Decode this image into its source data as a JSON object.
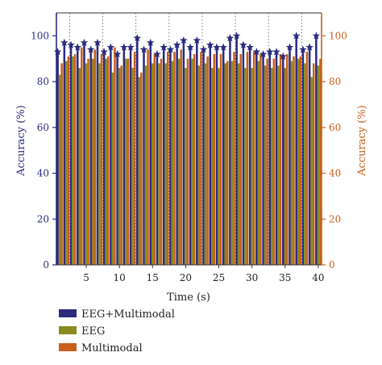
{
  "chart_data": {
    "type": "bar",
    "x": [
      1,
      2,
      3,
      4,
      5,
      6,
      7,
      8,
      9,
      10,
      11,
      12,
      13,
      14,
      15,
      16,
      17,
      18,
      19,
      20,
      21,
      22,
      23,
      24,
      25,
      26,
      27,
      28,
      29,
      30,
      31,
      32,
      33,
      34,
      35,
      36,
      37,
      38,
      39,
      40
    ],
    "xlabel": "Time (s)",
    "ylabel": "Accuracy (%)",
    "y2label": "Accuracy (%)",
    "xlim": [
      0.5,
      40.5
    ],
    "ylim": [
      0,
      110
    ],
    "xticks": [
      5,
      10,
      15,
      20,
      25,
      30,
      35,
      40
    ],
    "yticks": [
      0,
      20,
      40,
      60,
      80,
      100
    ],
    "dotted_vlines": [
      2.5,
      7.5,
      12.5,
      17.5,
      22.5,
      27.5,
      32.5,
      37.5
    ],
    "legend_position": "bottom-left",
    "series": [
      {
        "name": "EEG+Multimodal",
        "color": "#2b2b7e",
        "marker": "star",
        "values": [
          93,
          97,
          96,
          95,
          97,
          94,
          97,
          93,
          95,
          92,
          95,
          95,
          99,
          94,
          97,
          92,
          95,
          94,
          96,
          98,
          95,
          98,
          94,
          96,
          95,
          95,
          99,
          100,
          96,
          95,
          93,
          92,
          93,
          93,
          91,
          95,
          100,
          94,
          95,
          100
        ]
      },
      {
        "name": "EEG",
        "color": "#8a8a1f",
        "values": [
          83,
          89,
          91,
          86,
          88,
          90,
          88,
          90,
          84,
          86,
          90,
          86,
          82,
          87,
          88,
          88,
          88,
          89,
          90,
          86,
          90,
          87,
          88,
          86,
          86,
          88,
          89,
          88,
          86,
          86,
          89,
          87,
          86,
          87,
          86,
          89,
          90,
          88,
          82,
          87
        ]
      },
      {
        "name": "Multimodal",
        "color": "#c8601c",
        "values": [
          88,
          91,
          92,
          95,
          90,
          94,
          92,
          91,
          95,
          87,
          90,
          93,
          84,
          94,
          92,
          90,
          93,
          93,
          94,
          90,
          92,
          93,
          91,
          92,
          92,
          89,
          93,
          92,
          93,
          93,
          92,
          90,
          90,
          92,
          92,
          91,
          91,
          93,
          88,
          90
        ]
      }
    ]
  }
}
